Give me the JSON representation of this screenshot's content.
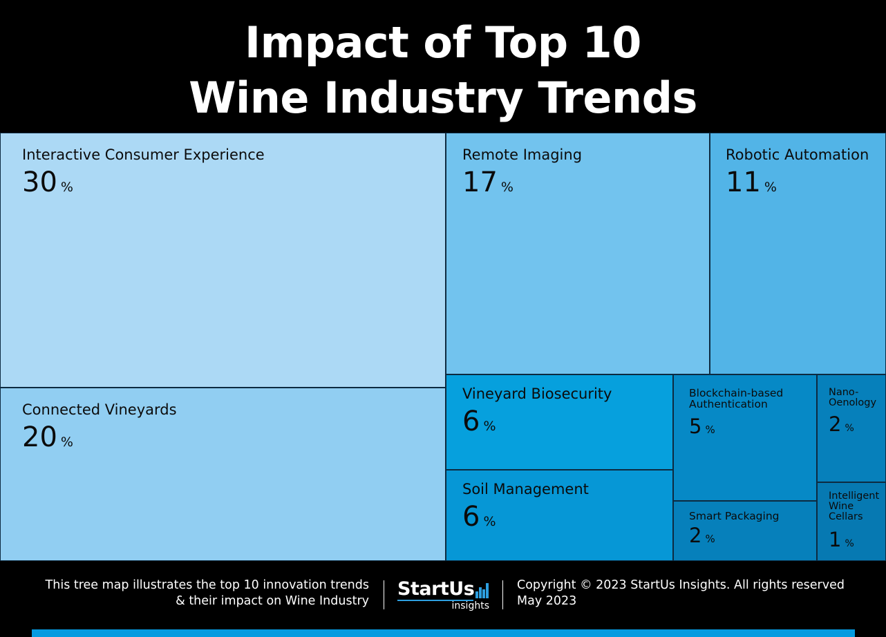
{
  "title": {
    "line1": "Impact of Top 10",
    "line2": "Wine Industry Trends"
  },
  "chart_data": {
    "type": "treemap",
    "unit": "%",
    "items": [
      {
        "label": "Interactive Consumer Experience",
        "value": 30,
        "color": "#acd9f5"
      },
      {
        "label": "Connected Vineyards",
        "value": 20,
        "color": "#91cef2"
      },
      {
        "label": "Remote Imaging",
        "value": 17,
        "color": "#72c3ee"
      },
      {
        "label": "Robotic Automation",
        "value": 11,
        "color": "#52b4e7"
      },
      {
        "label": "Vineyard Biosecurity",
        "value": 6,
        "color": "#06a0dd"
      },
      {
        "label": "Soil Management",
        "value": 6,
        "color": "#0697d6"
      },
      {
        "label": "Blockchain-based Authentication",
        "value": 5,
        "color": "#0689c6"
      },
      {
        "label": "Smart Packaging",
        "value": 2,
        "color": "#0680bb"
      },
      {
        "label": "Nano-Oenology",
        "value": 2,
        "color": "#0680bb"
      },
      {
        "label": "Intelligent Wine Cellars",
        "value": 1,
        "color": "#0679b2"
      }
    ]
  },
  "footer": {
    "description_line1": "This tree map illustrates the top 10 innovation trends",
    "description_line2": "& their impact on Wine Industry",
    "logo_main": "StartUs",
    "logo_sub": "insights",
    "copyright": "Copyright © 2023 StartUs Insights. All rights reserved",
    "date": "May 2023"
  },
  "colors": {
    "background": "#000000",
    "accent": "#059be0"
  }
}
